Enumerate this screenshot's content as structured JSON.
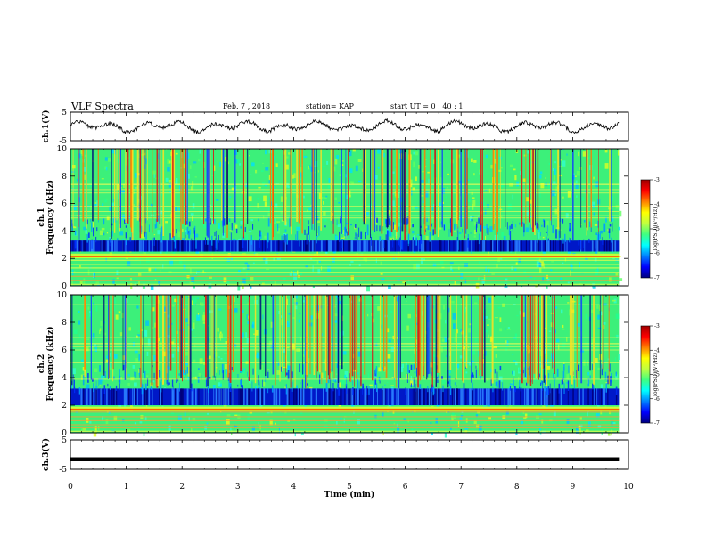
{
  "header": {
    "title": "VLF Spectra",
    "date": "Feb. 7 , 2018",
    "station": "station= KAP",
    "start": "start UT = 0 : 40 : 1"
  },
  "chart_data": [
    {
      "type": "line",
      "panel": "ch1-waveform",
      "ylabel": "ch.1(V)",
      "ylim": [
        -5,
        5
      ],
      "yticks": [
        "5",
        "-5"
      ],
      "x_range": [
        0,
        9.83
      ],
      "approx_level": 0,
      "approx_amplitude": 2.2
    },
    {
      "type": "heatmap",
      "panel": "ch1-spectrogram",
      "ylabel": "ch.1\nFrequency (kHz)",
      "ylim": [
        0,
        10
      ],
      "yticks": [
        "0",
        "2",
        "4",
        "6",
        "8",
        "10"
      ],
      "x_range": [
        0,
        9.83
      ],
      "colorbar": {
        "label": "log(PSD)(V²/Hz)",
        "range": [
          -7,
          -3
        ],
        "ticks": [
          "-3",
          "-4",
          "-5",
          "-6",
          "-7"
        ],
        "colors": [
          "#00007f",
          "#0000ff",
          "#0080ff",
          "#00ffff",
          "#40ff80",
          "#c0ff40",
          "#ffff00",
          "#ff8000",
          "#ff0000",
          "#a00000"
        ]
      },
      "features": {
        "low_power_band_khz": [
          2.5,
          3.3
        ],
        "strong_band_khz": [
          2.0,
          2.35
        ],
        "background": "green"
      }
    },
    {
      "type": "heatmap",
      "panel": "ch2-spectrogram",
      "ylabel": "ch.2\nFrequency (kHz)",
      "ylim": [
        0,
        10
      ],
      "yticks": [
        "0",
        "2",
        "4",
        "6",
        "8",
        "10"
      ],
      "x_range": [
        0,
        9.83
      ],
      "colorbar": {
        "label": "log(PSD)(V²/Hz)",
        "range": [
          -7,
          -3
        ],
        "ticks": [
          "-3",
          "-4",
          "-5",
          "-6",
          "-7"
        ],
        "colors": [
          "#00007f",
          "#0000ff",
          "#0080ff",
          "#00ffff",
          "#40ff80",
          "#c0ff40",
          "#ffff00",
          "#ff8000",
          "#ff0000",
          "#a00000"
        ]
      },
      "features": {
        "low_power_band_khz": [
          2.0,
          3.2
        ],
        "strong_band_khz": [
          1.6,
          1.9
        ],
        "background": "green"
      }
    },
    {
      "type": "line",
      "panel": "ch3-waveform",
      "ylabel": "ch.3(V)",
      "ylim": [
        -5,
        5
      ],
      "yticks": [
        "5",
        "-5"
      ],
      "x_range": [
        0,
        9.83
      ],
      "approx_level": -1.5,
      "approx_amplitude": 0
    }
  ],
  "xaxis": {
    "label": "Time (min)",
    "range": [
      0,
      10
    ],
    "ticks": [
      "0",
      "1",
      "2",
      "3",
      "4",
      "5",
      "6",
      "7",
      "8",
      "9",
      "10"
    ]
  }
}
